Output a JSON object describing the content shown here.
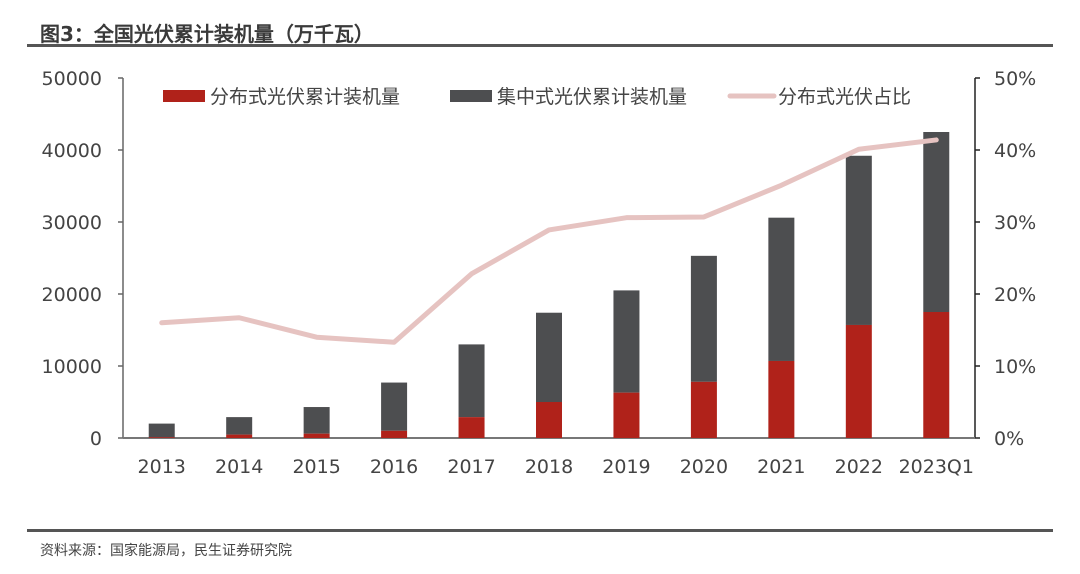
{
  "title": "图3：全国光伏累计装机量（万千瓦）",
  "source": "资料来源：国家能源局，民生证券研究院",
  "colors": {
    "distributed": "#b0221a",
    "centralized": "#4d4e50",
    "ratio_line": "#e6c3c1",
    "axis": "#777777"
  },
  "chart_data": {
    "type": "bar",
    "stacked": true,
    "title": "全国光伏累计装机量（万千瓦）",
    "xlabel": "",
    "ylabel": "",
    "categories": [
      "2013",
      "2014",
      "2015",
      "2016",
      "2017",
      "2018",
      "2019",
      "2020",
      "2021",
      "2022",
      "2023Q1"
    ],
    "series": [
      {
        "name": "分布式光伏累计装机量",
        "type": "bar",
        "axis": "left",
        "values": [
          100,
          470,
          600,
          1000,
          2900,
          5000,
          6300,
          7800,
          10700,
          15700,
          17500
        ]
      },
      {
        "name": "集中式光伏累计装机量",
        "type": "bar",
        "axis": "left",
        "values": [
          1900,
          2430,
          3700,
          6700,
          10100,
          12400,
          14200,
          17500,
          19900,
          23500,
          25000
        ]
      },
      {
        "name": "分布式光伏占比",
        "type": "line",
        "axis": "right",
        "unit": "%",
        "values": [
          16.0,
          16.7,
          14.0,
          13.3,
          22.8,
          28.9,
          30.6,
          30.7,
          35.1,
          40.1,
          41.4
        ]
      }
    ],
    "left_axis": {
      "min": 0,
      "max": 50000,
      "ticks": [
        "0",
        "10000",
        "20000",
        "30000",
        "40000",
        "50000"
      ]
    },
    "right_axis": {
      "min": 0,
      "max": 50,
      "ticks": [
        "0%",
        "10%",
        "20%",
        "30%",
        "40%",
        "50%"
      ]
    },
    "legend_position": "top",
    "grid": false
  }
}
